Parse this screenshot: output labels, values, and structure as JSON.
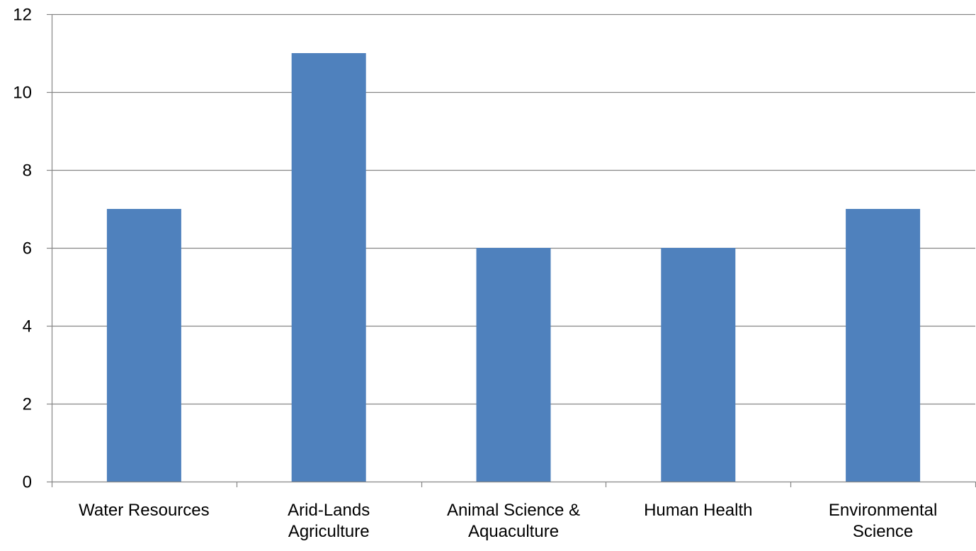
{
  "chart_data": {
    "type": "bar",
    "title": "",
    "xlabel": "",
    "ylabel": "",
    "categories": [
      [
        "Water Resources"
      ],
      [
        "Arid-Lands",
        "Agriculture"
      ],
      [
        "Animal Science &",
        "Aquaculture"
      ],
      [
        "Human Health"
      ],
      [
        "Environmental",
        "Science"
      ]
    ],
    "values": [
      7,
      11,
      6,
      6,
      7
    ],
    "ylim": [
      0,
      12
    ],
    "yticks": [
      "0",
      "2",
      "4",
      "6",
      "8",
      "10",
      "12"
    ],
    "grid": true,
    "legend": "none",
    "colors": {
      "bar": "#4F81BD",
      "grid": "#868686",
      "axis": "#868686"
    }
  }
}
